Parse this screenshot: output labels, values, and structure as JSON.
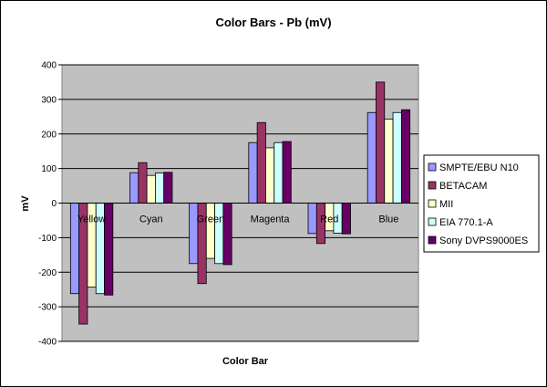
{
  "chart_data": {
    "type": "bar",
    "title": "Color Bars - Pb (mV)",
    "xlabel": "Color Bar",
    "ylabel": "mV",
    "ylim": [
      -400,
      400
    ],
    "yticks": [
      400,
      300,
      200,
      100,
      0,
      -100,
      -200,
      -300,
      -400
    ],
    "grid": true,
    "legend_position": "right",
    "plot_background": "#c0c0c0",
    "categories": [
      "Yellow",
      "Cyan",
      "Green",
      "Magenta",
      "Red",
      "Blue"
    ],
    "series": [
      {
        "name": "SMPTE/EBU N10",
        "color": "#9999ff",
        "values": [
          -262,
          88,
          -175,
          175,
          -88,
          262
        ]
      },
      {
        "name": "BETACAM",
        "color": "#993366",
        "values": [
          -350,
          117,
          -233,
          233,
          -117,
          350
        ]
      },
      {
        "name": "MII",
        "color": "#ffffcc",
        "values": [
          -243,
          80,
          -160,
          160,
          -80,
          243
        ]
      },
      {
        "name": "EIA 770.1-A",
        "color": "#ccffff",
        "values": [
          -262,
          87,
          -175,
          175,
          -87,
          262
        ]
      },
      {
        "name": "Sony DVPS9000ES",
        "color": "#660066",
        "values": [
          -266,
          89,
          -178,
          178,
          -89,
          270
        ]
      }
    ]
  }
}
